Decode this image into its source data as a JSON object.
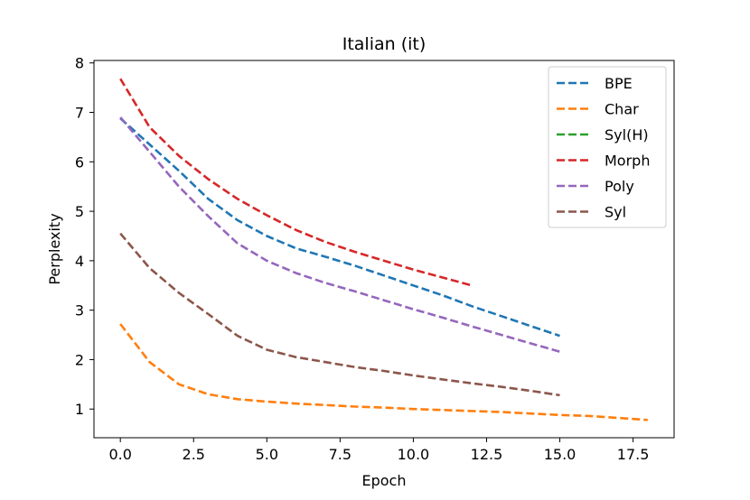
{
  "chart_data": {
    "type": "line",
    "title": "Italian (it)",
    "xlabel": "Epoch",
    "ylabel": "Perplexity",
    "xlim": [
      -0.9,
      18.9
    ],
    "ylim": [
      0.42,
      8.05
    ],
    "xticks": [
      0.0,
      2.5,
      5.0,
      7.5,
      10.0,
      12.5,
      15.0,
      17.5
    ],
    "xtick_labels": [
      "0.0",
      "2.5",
      "5.0",
      "7.5",
      "10.0",
      "12.5",
      "15.0",
      "17.5"
    ],
    "yticks": [
      1,
      2,
      3,
      4,
      5,
      6,
      7,
      8
    ],
    "ytick_labels": [
      "1",
      "2",
      "3",
      "4",
      "5",
      "6",
      "7",
      "8"
    ],
    "grid": false,
    "legend_position": "top-right",
    "line_style": "dashed",
    "series": [
      {
        "name": "BPE",
        "color": "#1f77b4",
        "x": [
          0,
          1,
          2,
          3,
          4,
          5,
          6,
          7,
          8,
          9,
          10,
          11,
          12,
          13,
          14,
          15
        ],
        "y": [
          6.88,
          6.35,
          5.82,
          5.25,
          4.82,
          4.5,
          4.25,
          4.08,
          3.9,
          3.7,
          3.5,
          3.3,
          3.08,
          2.88,
          2.68,
          2.48
        ]
      },
      {
        "name": "Char",
        "color": "#ff7f0e",
        "x": [
          0,
          1,
          2,
          3,
          4,
          5,
          6,
          7,
          8,
          9,
          10,
          11,
          12,
          13,
          14,
          15,
          16,
          17,
          18
        ],
        "y": [
          2.72,
          1.95,
          1.5,
          1.3,
          1.2,
          1.15,
          1.11,
          1.08,
          1.05,
          1.03,
          1.0,
          0.98,
          0.96,
          0.94,
          0.91,
          0.88,
          0.86,
          0.82,
          0.78
        ]
      },
      {
        "name": "Syl(H)",
        "color": "#2ca02c",
        "x": [],
        "y": []
      },
      {
        "name": "Morph",
        "color": "#d62728",
        "x": [
          0,
          1,
          2,
          3,
          4,
          5,
          6,
          7,
          8,
          9,
          10,
          11,
          12
        ],
        "y": [
          7.68,
          6.7,
          6.12,
          5.65,
          5.25,
          4.92,
          4.62,
          4.38,
          4.18,
          4.0,
          3.82,
          3.66,
          3.5
        ]
      },
      {
        "name": "Poly",
        "color": "#9467bd",
        "x": [
          0,
          1,
          2,
          3,
          4,
          5,
          6,
          7,
          8,
          9,
          10,
          11,
          12,
          13,
          14,
          15
        ],
        "y": [
          6.9,
          6.2,
          5.5,
          4.9,
          4.35,
          4.0,
          3.75,
          3.55,
          3.38,
          3.2,
          3.02,
          2.85,
          2.67,
          2.5,
          2.33,
          2.16
        ]
      },
      {
        "name": "Syl",
        "color": "#8c564b",
        "x": [
          0,
          1,
          2,
          3,
          4,
          5,
          6,
          7,
          8,
          9,
          10,
          11,
          12,
          13,
          14,
          15
        ],
        "y": [
          4.55,
          3.85,
          3.35,
          2.92,
          2.48,
          2.2,
          2.05,
          1.95,
          1.85,
          1.77,
          1.68,
          1.6,
          1.52,
          1.45,
          1.37,
          1.28
        ]
      }
    ]
  }
}
